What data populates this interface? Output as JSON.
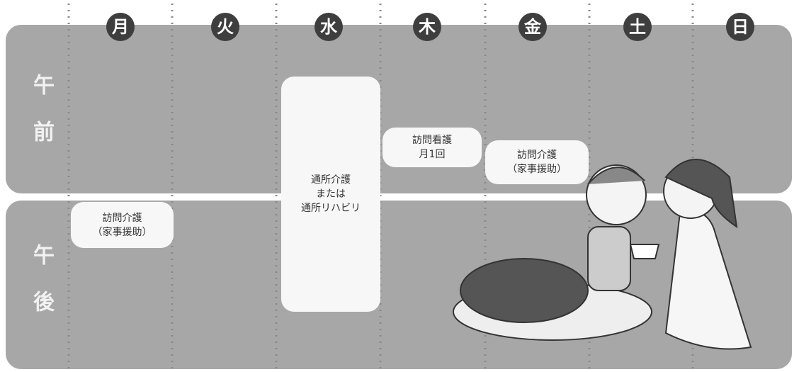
{
  "days": [
    "月",
    "火",
    "水",
    "木",
    "金",
    "土",
    "日"
  ],
  "rows": [
    {
      "label": "午前"
    },
    {
      "label": "午後"
    }
  ],
  "events": [
    {
      "lines": [
        "通所介護",
        "または",
        "通所リハビリ"
      ]
    },
    {
      "lines": [
        "訪問看護",
        "月1回"
      ]
    },
    {
      "lines": [
        "訪問介護",
        "（家事援助）"
      ]
    },
    {
      "lines": [
        "訪問介護",
        "（家事援助）"
      ]
    }
  ]
}
